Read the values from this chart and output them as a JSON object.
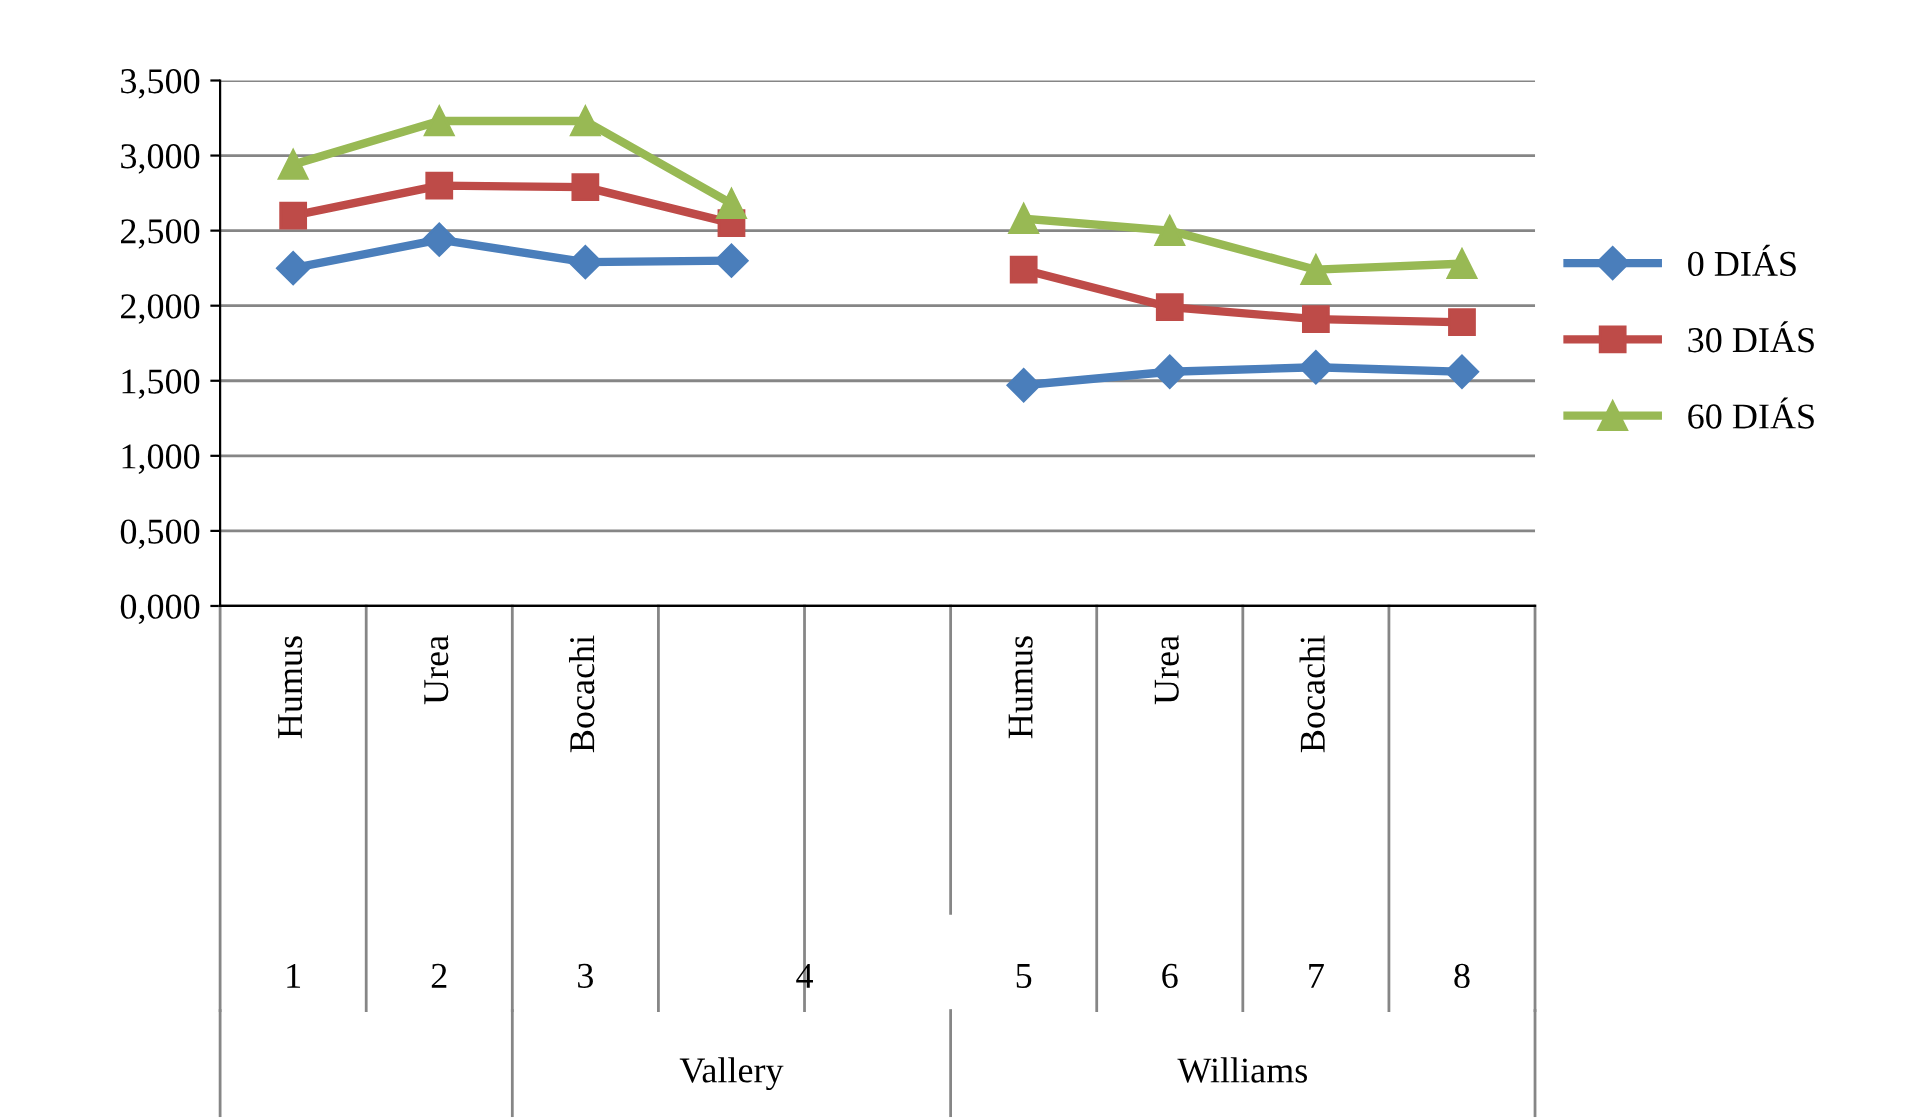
{
  "chart_data": {
    "type": "line",
    "categories": [
      "Humus",
      "Urea",
      "Bocachi",
      null,
      null,
      "Humus",
      "Urea",
      "Bocachi",
      null
    ],
    "series": [
      {
        "name": "0 DIÁS",
        "color": "#4a7ebb",
        "marker": "diamond",
        "values": [
          2.25,
          2.44,
          2.29,
          2.3,
          null,
          1.47,
          1.56,
          1.59,
          1.56
        ]
      },
      {
        "name": "30 DIÁS",
        "color": "#be4b48",
        "marker": "square",
        "values": [
          2.6,
          2.8,
          2.79,
          2.55,
          null,
          2.24,
          1.99,
          1.91,
          1.89
        ]
      },
      {
        "name": "60 DIÁS",
        "color": "#98b954",
        "marker": "triangle",
        "values": [
          2.94,
          3.23,
          3.23,
          2.68,
          null,
          2.58,
          2.5,
          2.24,
          2.28
        ]
      }
    ],
    "ylim": [
      0,
      3.5
    ],
    "yticks": [
      {
        "value": 0,
        "label": "0,000"
      },
      {
        "value": 0.5,
        "label": "0,500"
      },
      {
        "value": 1.0,
        "label": "1,000"
      },
      {
        "value": 1.5,
        "label": "1,500"
      },
      {
        "value": 2.0,
        "label": "2,000"
      },
      {
        "value": 2.5,
        "label": "2,500"
      },
      {
        "value": 3.0,
        "label": "3,000"
      },
      {
        "value": 3.5,
        "label": "3,500"
      }
    ],
    "grid": "y",
    "legend": "right",
    "line_style": "solid",
    "annotations": [
      "1",
      "2",
      "3",
      "4",
      "5",
      "6",
      "7",
      "8",
      "Vallery",
      "Williams"
    ]
  }
}
